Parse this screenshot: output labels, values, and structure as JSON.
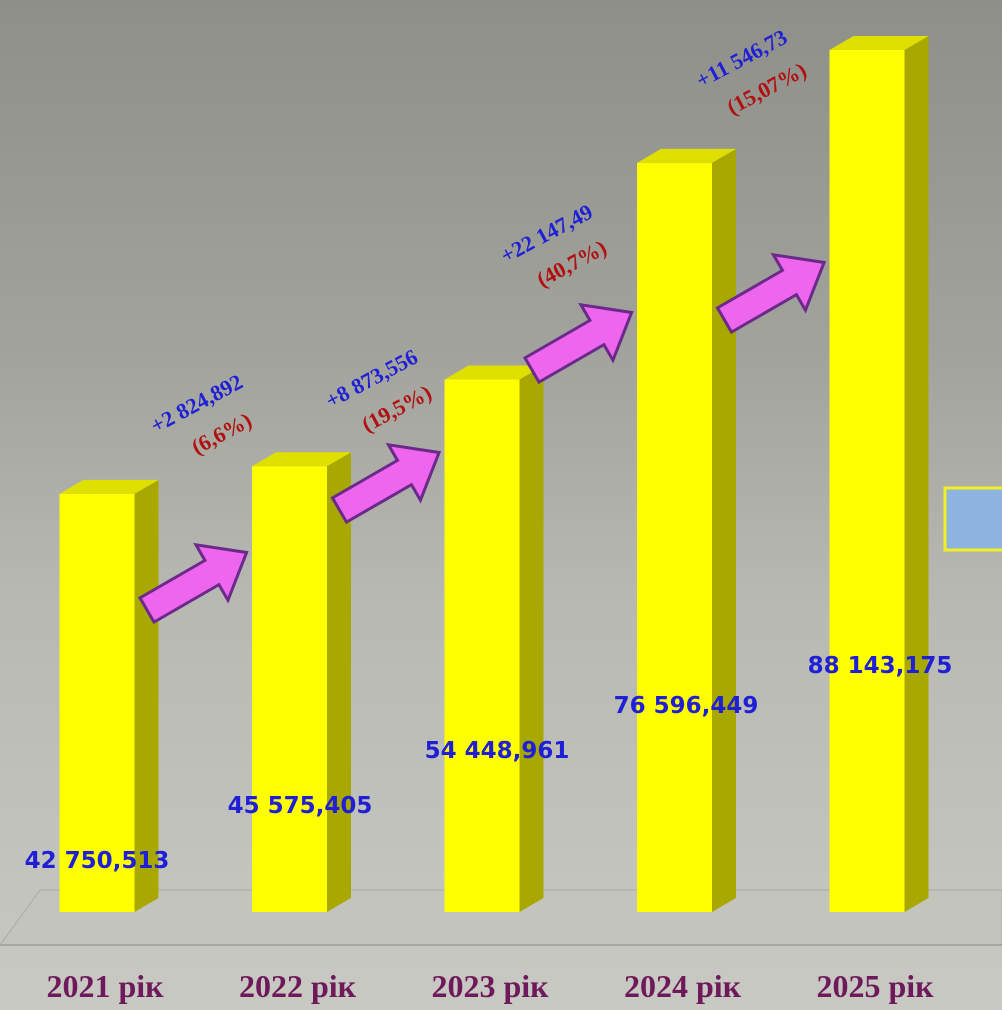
{
  "chart_data": {
    "type": "bar",
    "categories": [
      "2021 рік",
      "2022 рік",
      "2023 рік",
      "2024 рік",
      "2025 рік"
    ],
    "values": [
      42750.513,
      45575.405,
      54448.961,
      76596.449,
      88143.175
    ],
    "value_labels": [
      "42 750,513",
      "45 575,405",
      "54 448,961",
      "76 596,449",
      "88 143,175"
    ],
    "color": "#ffff00",
    "annotations": [
      {
        "change": "+2 824,892",
        "percent": "(6,6%)"
      },
      {
        "change": "+8 873,556",
        "percent": "(19,5%)"
      },
      {
        "change": "+22 147,49",
        "percent": "(40,7%)"
      },
      {
        "change": "+11 546,73",
        "percent": "(15,07%)"
      }
    ]
  }
}
